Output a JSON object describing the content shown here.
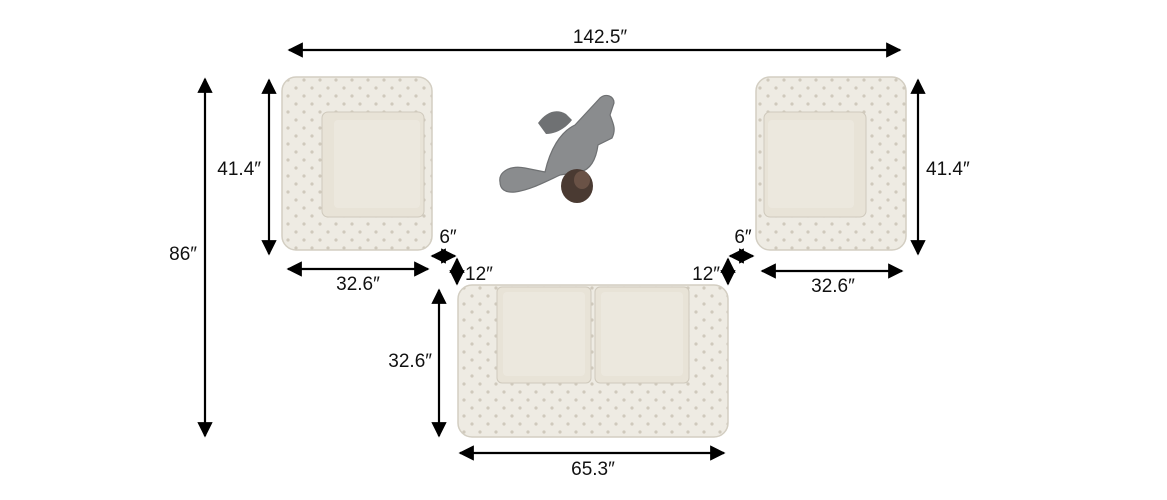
{
  "dimensions": {
    "overall_width": "142.5″",
    "overall_depth": "86″",
    "left_chair_depth": "41.4″",
    "left_chair_width": "32.6″",
    "right_chair_depth": "41.4″",
    "right_chair_width": "32.6″",
    "gap_left_horizontal": "6″",
    "gap_left_vertical": "12″",
    "gap_right_horizontal": "6″",
    "gap_right_vertical": "12″",
    "sofa_depth": "32.6″",
    "sofa_width": "65.3″"
  },
  "colors": {
    "upholstery": "#efece4",
    "upholstery_shadow": "#d8d3c8",
    "cushion": "#e7e2d6",
    "person_clothing": "#8a8c8e",
    "person_hair": "#4a3a32",
    "lines": "#000000"
  }
}
